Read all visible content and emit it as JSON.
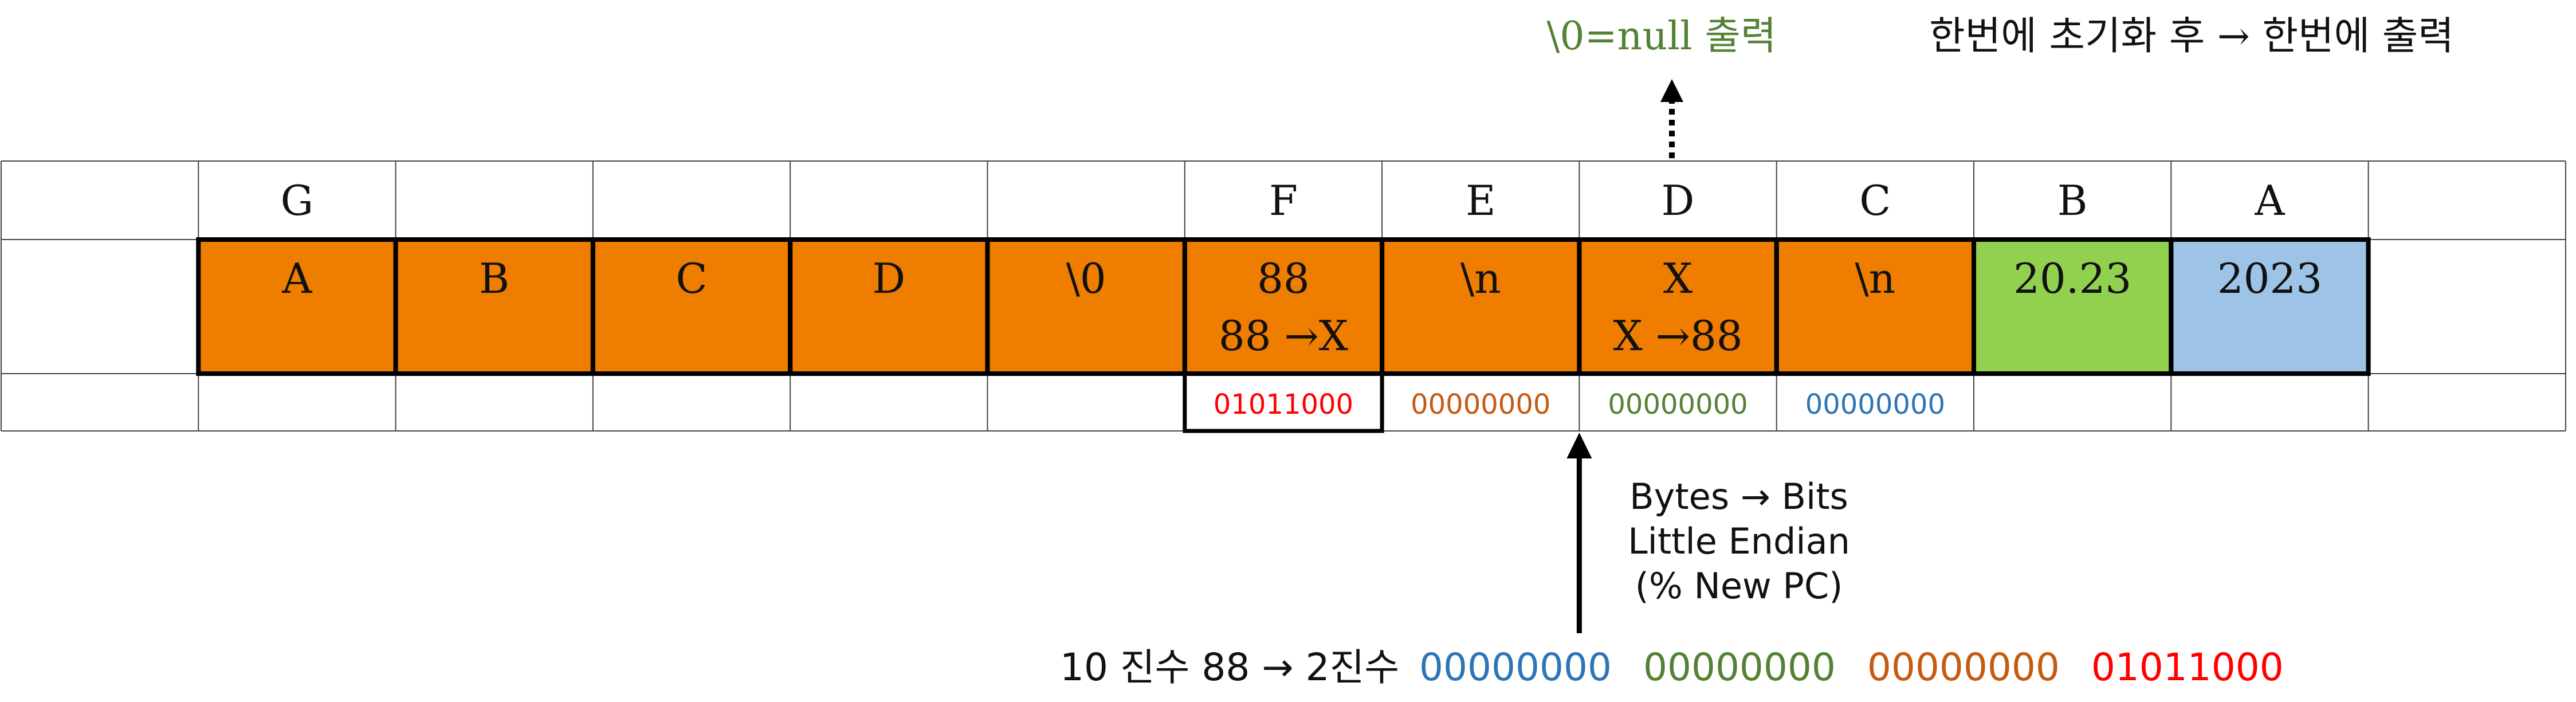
{
  "colors": {
    "orange": "#ee7d00",
    "green": "#92d050",
    "blue": "#9dc3e6",
    "note_green": "#548235",
    "bit_red": "#ff0000",
    "bit_orange": "#c55a11",
    "bit_green": "#548235",
    "bit_blue": "#2e75b6"
  },
  "top_note": {
    "null_note": "\\0=null 출력",
    "flow_note": "한번에 초기화 후 → 한번에 출력"
  },
  "columns": [
    {
      "header": "",
      "value": "",
      "value2": "",
      "bits": "",
      "fill": "none",
      "bit_color": ""
    },
    {
      "header": "G",
      "value": "A",
      "value2": "",
      "bits": "",
      "fill": "orange",
      "bit_color": ""
    },
    {
      "header": "",
      "value": "B",
      "value2": "",
      "bits": "",
      "fill": "orange",
      "bit_color": ""
    },
    {
      "header": "",
      "value": "C",
      "value2": "",
      "bits": "",
      "fill": "orange",
      "bit_color": ""
    },
    {
      "header": "",
      "value": "D",
      "value2": "",
      "bits": "",
      "fill": "orange",
      "bit_color": ""
    },
    {
      "header": "",
      "value": "\\0",
      "value2": "",
      "bits": "",
      "fill": "orange",
      "bit_color": ""
    },
    {
      "header": "F",
      "value": "88",
      "value2": "88 →X",
      "bits": "01011000",
      "fill": "orange",
      "bit_color": "bit_red"
    },
    {
      "header": "E",
      "value": "\\n",
      "value2": "",
      "bits": "00000000",
      "fill": "orange",
      "bit_color": "bit_orange"
    },
    {
      "header": "D",
      "value": "X",
      "value2": "X →88",
      "bits": "00000000",
      "fill": "orange",
      "bit_color": "bit_green"
    },
    {
      "header": "C",
      "value": "\\n",
      "value2": "",
      "bits": "00000000",
      "fill": "orange",
      "bit_color": "bit_blue"
    },
    {
      "header": "B",
      "value": "20.23",
      "value2": "",
      "bits": "",
      "fill": "green",
      "bit_color": ""
    },
    {
      "header": "A",
      "value": "2023",
      "value2": "",
      "bits": "",
      "fill": "blue",
      "bit_color": ""
    },
    {
      "header": "",
      "value": "",
      "value2": "",
      "bits": "",
      "fill": "none",
      "bit_color": ""
    }
  ],
  "arrow_note": [
    "Bytes → Bits",
    "Little Endian",
    "(% New PC)"
  ],
  "bottom_line": {
    "prefix": "10 진수 88 → 2진수",
    "groups": [
      {
        "text": "00000000",
        "color": "bit_blue"
      },
      {
        "text": "00000000",
        "color": "bit_green"
      },
      {
        "text": "00000000",
        "color": "bit_orange"
      },
      {
        "text": "01011000",
        "color": "bit_red"
      }
    ]
  }
}
